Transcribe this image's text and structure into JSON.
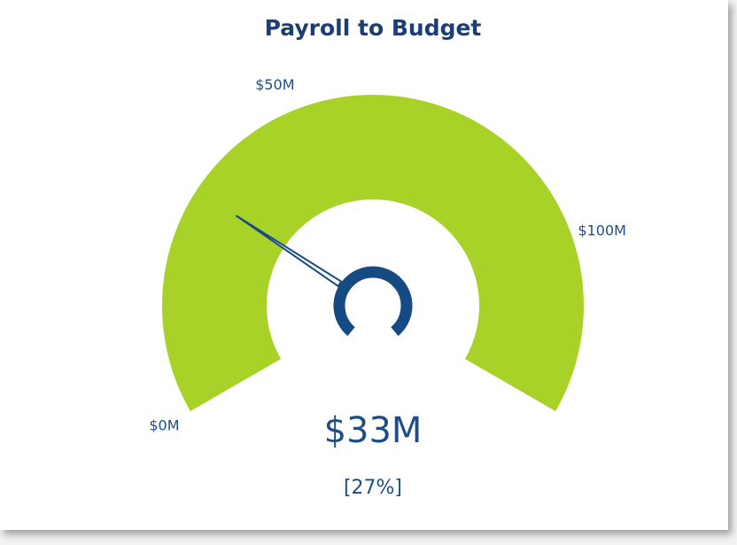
{
  "chart_data": {
    "type": "gauge",
    "title": "Payroll to Budget",
    "values": [
      33
    ],
    "value_labels": [
      "$33M"
    ],
    "percent_label": "[27%]",
    "color": "#a8d228",
    "needle_color": "#164a82",
    "ylim": [
      0,
      125
    ],
    "yticks": [
      {
        "value": 0,
        "label": "$0M"
      },
      {
        "value": 50,
        "label": "$50M"
      },
      {
        "value": 100,
        "label": "$100M"
      }
    ]
  }
}
